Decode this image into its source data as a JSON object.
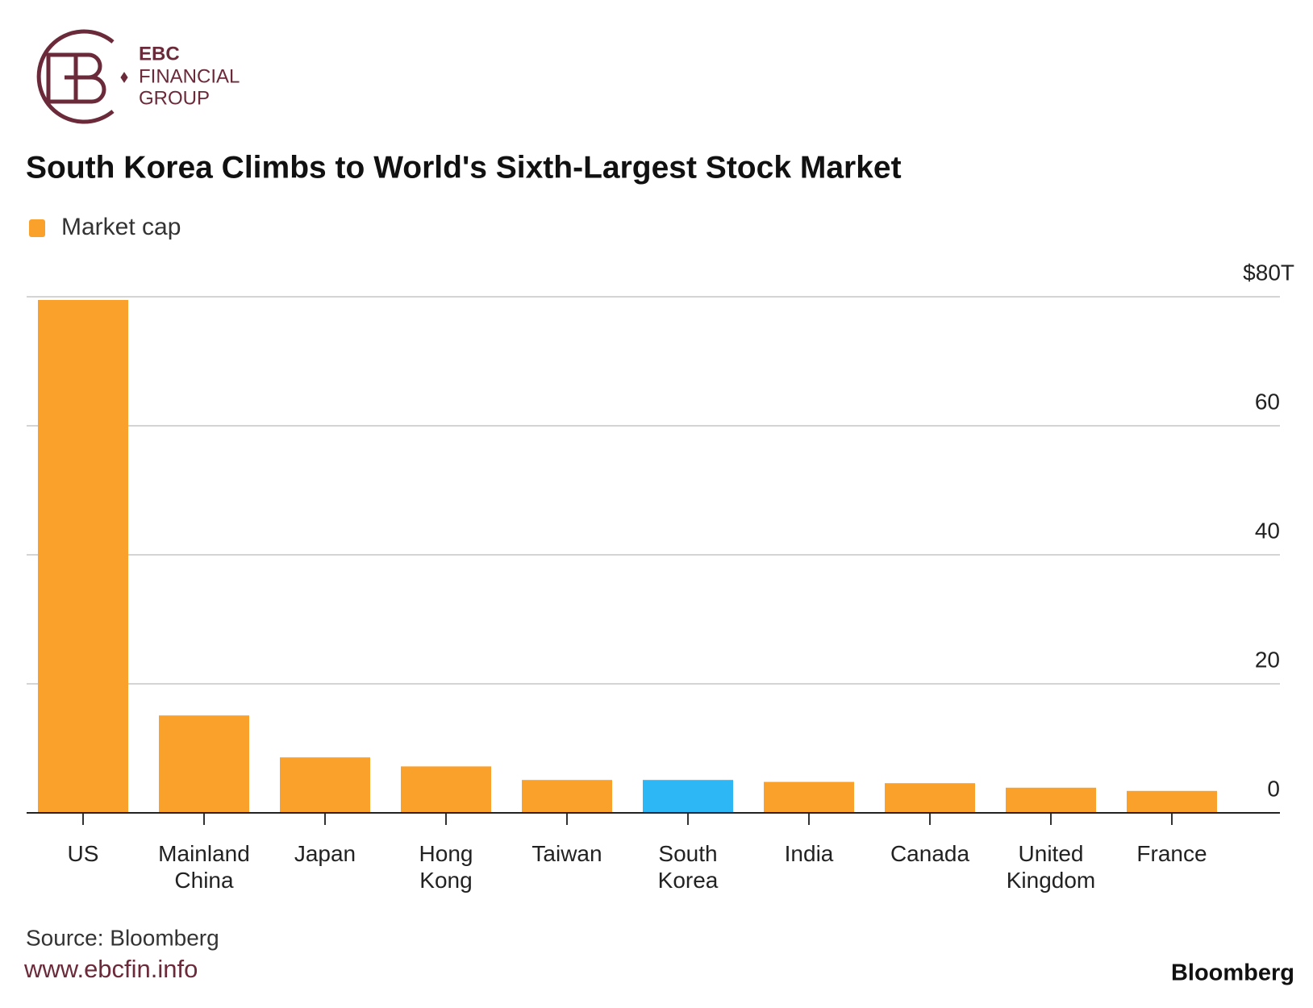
{
  "brand": {
    "line1": "EBC",
    "line2": "FINANCIAL",
    "line3": "GROUP"
  },
  "chart_data": {
    "type": "bar",
    "title": "South Korea Climbs to World's Sixth-Largest Stock Market",
    "categories": [
      "US",
      "Mainland China",
      "Japan",
      "Hong Kong",
      "Taiwan",
      "South Korea",
      "India",
      "Canada",
      "United Kingdom",
      "France"
    ],
    "series": [
      {
        "name": "Market cap",
        "color": "#f9a12b",
        "values": [
          79.5,
          15.1,
          8.6,
          7.2,
          5.1,
          5.1,
          4.8,
          4.6,
          3.9,
          3.4
        ]
      }
    ],
    "bar_colors": [
      "#f9a12b",
      "#f9a12b",
      "#f9a12b",
      "#f9a12b",
      "#f9a12b",
      "#2db7f5",
      "#f9a12b",
      "#f9a12b",
      "#f9a12b",
      "#f9a12b"
    ],
    "ylim": [
      0,
      80
    ],
    "yticks": [
      0,
      20,
      40,
      60,
      {
        "value": 80,
        "label": "$80T"
      }
    ],
    "grid": true,
    "source": "Source: Bloomberg"
  },
  "footer": {
    "url": "www.ebcfin.info",
    "credit": "Bloomberg"
  }
}
